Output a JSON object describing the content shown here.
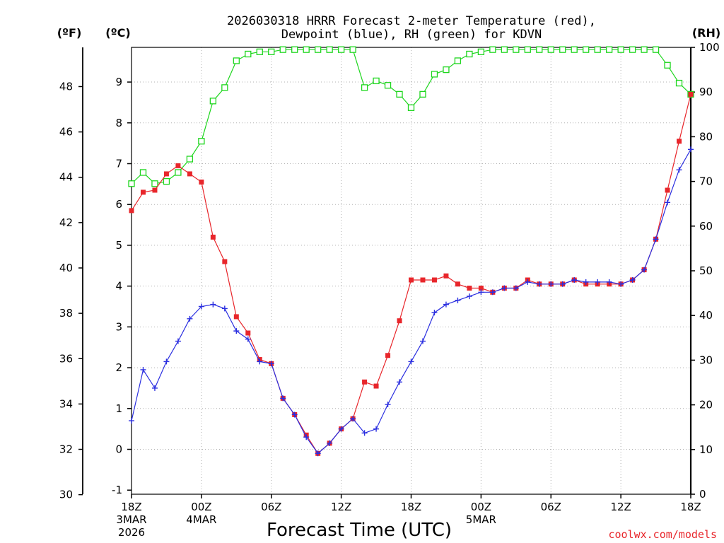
{
  "chart_data": {
    "type": "line",
    "title_lines": [
      "2026030318 HRRR Forecast 2-meter Temperature (red),",
      "Dewpoint (blue), RH (green) for KDVN"
    ],
    "xlabel": "Forecast Time (UTC)",
    "credit": "coolwx.com/models",
    "units": {
      "fahrenheit": "(ºF)",
      "celsius": "(ºC)",
      "rh": "(RH)"
    },
    "x_range_hours": [
      0,
      48
    ],
    "celsius_axis": {
      "range": [
        -1.1,
        9.85
      ],
      "ticks": [
        -1,
        0,
        1,
        2,
        3,
        4,
        5,
        6,
        7,
        8,
        9
      ]
    },
    "fahrenheit_axis": {
      "ticks": [
        30,
        32,
        34,
        36,
        38,
        40,
        42,
        44,
        46,
        48
      ]
    },
    "rh_axis": {
      "range": [
        0,
        100
      ],
      "ticks": [
        0,
        10,
        20,
        30,
        40,
        50,
        60,
        70,
        80,
        90,
        100
      ]
    },
    "x_ticks": [
      {
        "hour": 0,
        "lines": [
          "18Z",
          "3MAR",
          "2026"
        ]
      },
      {
        "hour": 6,
        "lines": [
          "00Z",
          "4MAR"
        ]
      },
      {
        "hour": 12,
        "lines": [
          "06Z"
        ]
      },
      {
        "hour": 18,
        "lines": [
          "12Z"
        ]
      },
      {
        "hour": 24,
        "lines": [
          "18Z"
        ]
      },
      {
        "hour": 30,
        "lines": [
          "00Z",
          "5MAR"
        ]
      },
      {
        "hour": 36,
        "lines": [
          "06Z"
        ]
      },
      {
        "hour": 42,
        "lines": [
          "12Z"
        ]
      },
      {
        "hour": 48,
        "lines": [
          "18Z"
        ]
      }
    ],
    "hours": [
      0,
      1,
      2,
      3,
      4,
      5,
      6,
      7,
      8,
      9,
      10,
      11,
      12,
      13,
      14,
      15,
      16,
      17,
      18,
      19,
      20,
      21,
      22,
      23,
      24,
      25,
      26,
      27,
      28,
      29,
      30,
      31,
      32,
      33,
      34,
      35,
      36,
      37,
      38,
      39,
      40,
      41,
      42,
      43,
      44,
      45,
      46,
      47,
      48
    ],
    "series": [
      {
        "name": "Temperature",
        "unit": "C",
        "color": "#e8262b",
        "marker": "filled-square",
        "values": [
          5.85,
          6.3,
          6.35,
          6.75,
          6.95,
          6.75,
          6.55,
          5.2,
          4.6,
          3.25,
          2.85,
          2.2,
          2.1,
          1.25,
          0.85,
          0.35,
          -0.1,
          0.15,
          0.5,
          0.75,
          1.65,
          1.55,
          2.3,
          3.15,
          4.15,
          4.15,
          4.15,
          4.25,
          4.05,
          3.95,
          3.95,
          3.85,
          3.95,
          3.95,
          4.15,
          4.05,
          4.05,
          4.05,
          4.15,
          4.05,
          4.05,
          4.05,
          4.05,
          4.15,
          4.4,
          5.15,
          6.35,
          7.55,
          8.7
        ]
      },
      {
        "name": "Dewpoint",
        "unit": "C",
        "color": "#2b2fe0",
        "marker": "plus",
        "values": [
          0.7,
          1.95,
          1.5,
          2.15,
          2.65,
          3.2,
          3.5,
          3.55,
          3.45,
          2.9,
          2.7,
          2.15,
          2.1,
          1.25,
          0.85,
          0.3,
          -0.1,
          0.15,
          0.5,
          0.75,
          0.4,
          0.5,
          1.1,
          1.65,
          2.15,
          2.65,
          3.35,
          3.55,
          3.65,
          3.75,
          3.85,
          3.85,
          3.95,
          3.95,
          4.1,
          4.05,
          4.05,
          4.05,
          4.15,
          4.1,
          4.1,
          4.1,
          4.05,
          4.15,
          4.4,
          5.15,
          6.05,
          6.85,
          7.35
        ]
      },
      {
        "name": "RH",
        "unit": "%",
        "color": "#1ed61e",
        "marker": "open-square",
        "values": [
          69.5,
          72,
          69.5,
          70,
          72,
          75,
          79,
          88,
          91,
          97,
          98.5,
          99,
          99,
          99.5,
          99.5,
          99.5,
          99.5,
          99.5,
          99.5,
          99.5,
          91,
          92.5,
          91.5,
          89.5,
          86.5,
          89.5,
          94,
          95,
          97,
          98.5,
          99,
          99.5,
          99.5,
          99.5,
          99.5,
          99.5,
          99.5,
          99.5,
          99.5,
          99.5,
          99.5,
          99.5,
          99.5,
          99.5,
          99.5,
          99.5,
          96,
          92,
          89.5
        ]
      }
    ]
  }
}
